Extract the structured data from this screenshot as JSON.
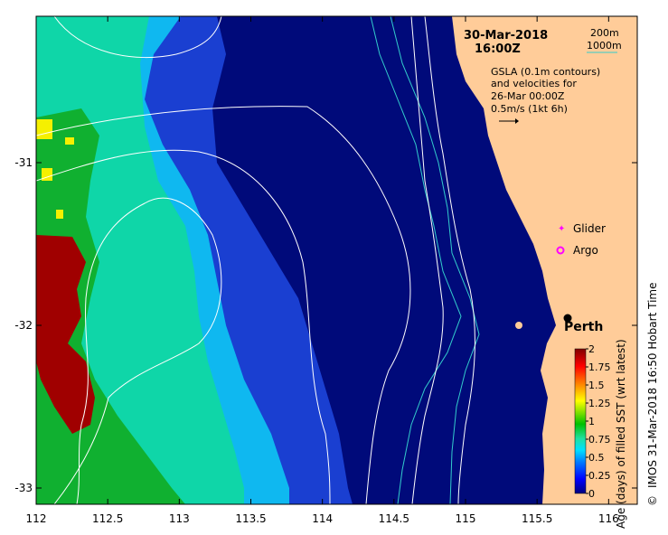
{
  "map": {
    "date_line": "30-Mar-2018",
    "time_line": "16:00Z",
    "depth_legend": {
      "shallow": "200m",
      "deep": "1000m",
      "deep_color": "#33cccc",
      "shallow_color": "#ffffff"
    },
    "gsla_text": [
      "GSLA (0.1m contours)",
      "and velocities for",
      "26-Mar 00:00Z",
      "0.5m/s (1kt 6h)"
    ],
    "markers": {
      "glider": {
        "label": "Glider",
        "color": "#ff00ff"
      },
      "argo": {
        "label": "Argo",
        "color": "#ff00ff"
      },
      "city": {
        "label": "Perth",
        "lon": 115.86,
        "lat": -31.95
      }
    },
    "credit": "IMOS 31-Mar-2018 16:50 Hobart Time",
    "credit_symbol": "©",
    "land_color": "#ffcc99"
  },
  "chart_data": {
    "type": "heatmap",
    "x_ticks": [
      "112",
      "112.5",
      "113",
      "113.5",
      "114",
      "114.5",
      "115",
      "115.5",
      "116"
    ],
    "y_ticks": [
      "-31",
      "-32",
      "-33"
    ],
    "x_tick_values": [
      112,
      112.5,
      113,
      113.5,
      114,
      114.5,
      115,
      115.5,
      116
    ],
    "y_tick_values": [
      -31,
      -32,
      -33
    ],
    "xlim": [
      112,
      116.2
    ],
    "ylim": [
      -33.1,
      -30.1
    ],
    "colorbar": {
      "label": "Age (days) of filled SST (wrt latest)",
      "ticks": [
        "2",
        "1.75",
        "1.5",
        "1.25",
        "1",
        "0.75",
        "0.5",
        "0.25",
        "0"
      ],
      "range": [
        0,
        2
      ],
      "colors": [
        "#00007f",
        "#0000ff",
        "#007fff",
        "#00e0ff",
        "#20e0a0",
        "#00c000",
        "#80e000",
        "#ffff00",
        "#ff8000",
        "#ff0000",
        "#800000"
      ]
    },
    "field_colors": {
      "offshore_deep_blue": "#000a7a",
      "mid_blue": "#1a3fd1",
      "light_blue": "#0fb8f0",
      "teal": "#0fd6a8",
      "green": "#10b030",
      "yellow": "#f5f000",
      "dark_red": "#a00000"
    }
  }
}
